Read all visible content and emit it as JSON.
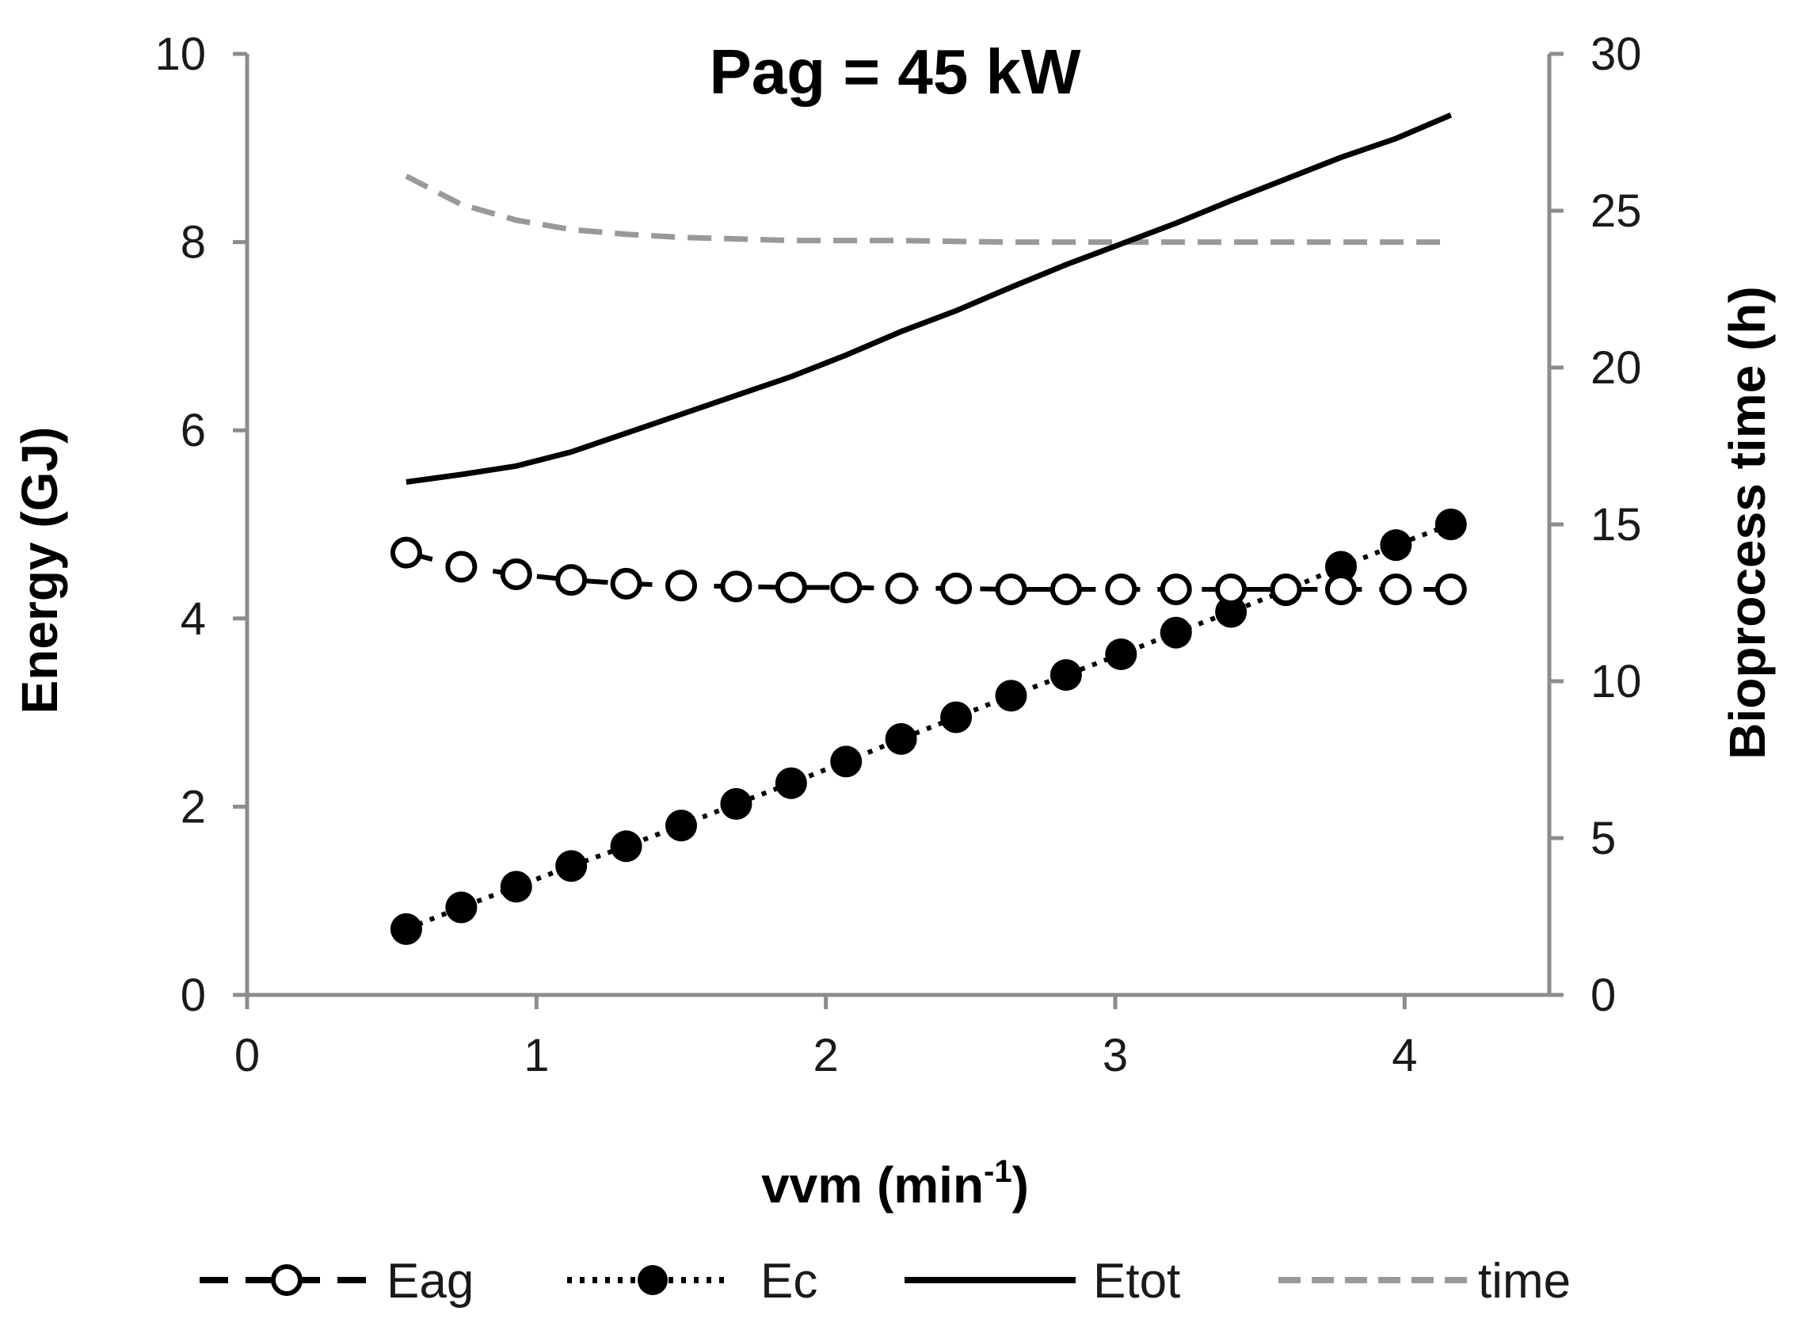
{
  "chart_data": {
    "type": "line",
    "title": "Pag = 45 kW",
    "xlabel": "vvm (min",
    "xlabel_sup": "-1",
    "xlabel_end": ")",
    "ylabel": "Energy (GJ)",
    "y2label": "Bioprocess time (h)",
    "xlim": [
      0,
      4.5
    ],
    "ylim": [
      0,
      10
    ],
    "y2lim": [
      0,
      30
    ],
    "x_ticks": [
      "0",
      "1",
      "2",
      "3",
      "4"
    ],
    "y_ticks": [
      "0",
      "2",
      "4",
      "6",
      "8",
      "10"
    ],
    "y2_ticks": [
      "0",
      "5",
      "10",
      "15",
      "20",
      "25",
      "30"
    ],
    "x": [
      0.55,
      0.74,
      0.93,
      1.12,
      1.31,
      1.5,
      1.69,
      1.88,
      2.07,
      2.26,
      2.45,
      2.64,
      2.83,
      3.02,
      3.21,
      3.4,
      3.59,
      3.78,
      3.97,
      4.16
    ],
    "series": [
      {
        "name": "Eag",
        "axis": "left",
        "style": "dash-open-circle",
        "values": [
          4.7,
          4.55,
          4.47,
          4.41,
          4.37,
          4.35,
          4.34,
          4.33,
          4.33,
          4.32,
          4.32,
          4.31,
          4.31,
          4.31,
          4.31,
          4.31,
          4.31,
          4.31,
          4.31,
          4.31
        ]
      },
      {
        "name": "Ec",
        "axis": "left",
        "style": "dot-filled-circle",
        "values": [
          0.7,
          0.93,
          1.15,
          1.37,
          1.58,
          1.8,
          2.03,
          2.25,
          2.48,
          2.72,
          2.95,
          3.18,
          3.4,
          3.62,
          3.85,
          4.07,
          4.3,
          4.55,
          4.78,
          5.0
        ]
      },
      {
        "name": "Etot",
        "axis": "left",
        "style": "solid",
        "values": [
          5.45,
          5.53,
          5.62,
          5.77,
          5.97,
          6.17,
          6.37,
          6.57,
          6.8,
          7.05,
          7.27,
          7.52,
          7.76,
          7.98,
          8.2,
          8.44,
          8.67,
          8.9,
          9.1,
          9.35
        ]
      },
      {
        "name": "time",
        "axis": "right",
        "style": "gray-dash",
        "values": [
          26.1,
          25.2,
          24.7,
          24.4,
          24.25,
          24.15,
          24.1,
          24.05,
          24.05,
          24.05,
          24.02,
          24.0,
          24.0,
          24.0,
          24.0,
          24.0,
          24.0,
          24.0,
          24.0,
          24.0
        ]
      }
    ],
    "legend_position": "bottom",
    "grid": false
  },
  "colors": {
    "axis": "#8c8c8c",
    "line": "#000000",
    "time_line": "#999999",
    "marker_open_fill": "#ffffff"
  }
}
